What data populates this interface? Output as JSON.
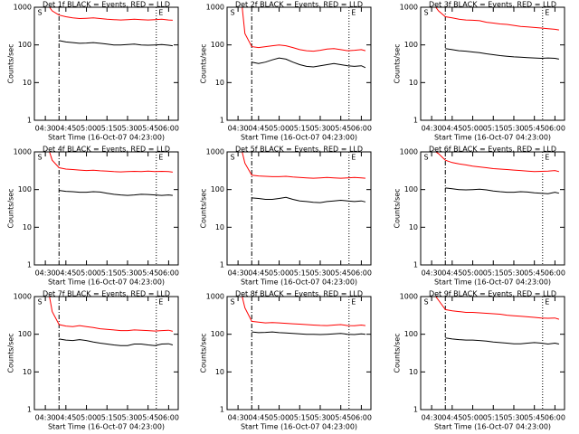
{
  "chart_data": [
    {
      "type": "line",
      "title": "Det 1f BLACK = Events, RED = LLD",
      "x_label": "Start Time (16-Oct-07 04:23:00)",
      "y_label": "Counts/sec",
      "x": [
        "04:33",
        "04:35",
        "04:40",
        "04:45",
        "04:50",
        "04:55",
        "05:00",
        "05:05",
        "05:10",
        "05:15",
        "05:20",
        "05:25",
        "05:30",
        "05:35",
        "05:40",
        "05:45",
        "05:50",
        "05:55",
        "06:00",
        "06:03"
      ],
      "xlim": [
        "04:22",
        "06:07"
      ],
      "xticks": [
        "04:30",
        "04:45",
        "05:00",
        "05:15",
        "05:30",
        "05:45",
        "06:00"
      ],
      "ylim": [
        1,
        1000
      ],
      "yticks": [
        1,
        10,
        100,
        1000
      ],
      "log_y": true,
      "markers": [
        {
          "label": "S",
          "x": "04:40"
        },
        {
          "label": "E",
          "x": "05:51"
        }
      ],
      "series": [
        {
          "color": "#ff0000",
          "values": [
            1000,
            800,
            620,
            560,
            520,
            500,
            510,
            520,
            500,
            480,
            470,
            460,
            470,
            480,
            470,
            460,
            470,
            480,
            460,
            450
          ]
        },
        {
          "color": "#000000",
          "values": [
            null,
            null,
            130,
            120,
            115,
            110,
            112,
            115,
            110,
            105,
            100,
            100,
            102,
            105,
            100,
            98,
            100,
            102,
            98,
            95
          ]
        }
      ]
    },
    {
      "type": "line",
      "title": "Det 2f BLACK = Events, RED = LLD",
      "x_label": "Start Time (16-Oct-07 04:23:00)",
      "y_label": "Counts/sec",
      "x": [
        "04:33",
        "04:35",
        "04:40",
        "04:45",
        "04:50",
        "04:55",
        "05:00",
        "05:05",
        "05:10",
        "05:15",
        "05:20",
        "05:25",
        "05:30",
        "05:35",
        "05:40",
        "05:45",
        "05:50",
        "05:55",
        "06:00",
        "06:03"
      ],
      "xlim": [
        "04:22",
        "06:07"
      ],
      "xticks": [
        "04:30",
        "04:45",
        "05:00",
        "05:15",
        "05:30",
        "05:45",
        "06:00"
      ],
      "ylim": [
        1,
        1000
      ],
      "yticks": [
        1,
        10,
        100,
        1000
      ],
      "log_y": true,
      "markers": [
        {
          "label": "S",
          "x": "04:40"
        },
        {
          "label": "E",
          "x": "05:51"
        }
      ],
      "series": [
        {
          "color": "#ff0000",
          "values": [
            1000,
            200,
            90,
            85,
            90,
            95,
            100,
            95,
            85,
            75,
            70,
            68,
            72,
            78,
            80,
            75,
            70,
            72,
            75,
            70
          ]
        },
        {
          "color": "#000000",
          "values": [
            null,
            null,
            35,
            32,
            35,
            40,
            45,
            42,
            35,
            30,
            27,
            26,
            28,
            30,
            32,
            30,
            28,
            27,
            28,
            25
          ]
        }
      ]
    },
    {
      "type": "line",
      "title": "Det 3f BLACK = Events, RED = LLD",
      "x_label": "Start Time (16-Oct-07 04:23:00)",
      "y_label": "Counts/sec",
      "x": [
        "04:33",
        "04:35",
        "04:40",
        "04:45",
        "04:50",
        "04:55",
        "05:00",
        "05:05",
        "05:10",
        "05:15",
        "05:20",
        "05:25",
        "05:30",
        "05:35",
        "05:40",
        "05:45",
        "05:50",
        "05:55",
        "06:00",
        "06:03"
      ],
      "xlim": [
        "04:22",
        "06:07"
      ],
      "xticks": [
        "04:30",
        "04:45",
        "05:00",
        "05:15",
        "05:30",
        "05:45",
        "06:00"
      ],
      "ylim": [
        1,
        1000
      ],
      "yticks": [
        1,
        10,
        100,
        1000
      ],
      "log_y": true,
      "markers": [
        {
          "label": "S",
          "x": "04:40"
        },
        {
          "label": "E",
          "x": "05:51"
        }
      ],
      "series": [
        {
          "color": "#ff0000",
          "values": [
            1000,
            800,
            560,
            520,
            480,
            460,
            450,
            440,
            400,
            380,
            360,
            350,
            330,
            310,
            300,
            290,
            280,
            270,
            260,
            250
          ]
        },
        {
          "color": "#000000",
          "values": [
            null,
            null,
            80,
            75,
            70,
            68,
            65,
            62,
            58,
            55,
            52,
            50,
            48,
            47,
            46,
            45,
            44,
            45,
            44,
            42
          ]
        }
      ]
    },
    {
      "type": "line",
      "title": "Det 4f BLACK = Events, RED = LLD",
      "x_label": "Start Time (16-Oct-07 04:23:00)",
      "y_label": "Counts/sec",
      "x": [
        "04:33",
        "04:35",
        "04:40",
        "04:45",
        "04:50",
        "04:55",
        "05:00",
        "05:05",
        "05:10",
        "05:15",
        "05:20",
        "05:25",
        "05:30",
        "05:35",
        "05:40",
        "05:45",
        "05:50",
        "05:55",
        "06:00",
        "06:03"
      ],
      "xlim": [
        "04:22",
        "06:07"
      ],
      "xticks": [
        "04:30",
        "04:45",
        "05:00",
        "05:15",
        "05:30",
        "05:45",
        "06:00"
      ],
      "ylim": [
        1,
        1000
      ],
      "yticks": [
        1,
        10,
        100,
        1000
      ],
      "log_y": true,
      "markers": [
        {
          "label": "S",
          "x": "04:40"
        },
        {
          "label": "E",
          "x": "05:51"
        }
      ],
      "series": [
        {
          "color": "#ff0000",
          "values": [
            1000,
            600,
            380,
            350,
            340,
            330,
            320,
            325,
            315,
            310,
            300,
            295,
            300,
            305,
            300,
            310,
            300,
            305,
            300,
            290
          ]
        },
        {
          "color": "#000000",
          "values": [
            null,
            null,
            95,
            90,
            88,
            85,
            85,
            88,
            86,
            80,
            75,
            72,
            70,
            72,
            75,
            74,
            72,
            70,
            72,
            70
          ]
        }
      ]
    },
    {
      "type": "line",
      "title": "Det 5f BLACK = Events, RED = LLD",
      "x_label": "Start Time (16-Oct-07 04:23:00)",
      "y_label": "Counts/sec",
      "x": [
        "04:33",
        "04:35",
        "04:40",
        "04:45",
        "04:50",
        "04:55",
        "05:00",
        "05:05",
        "05:10",
        "05:15",
        "05:20",
        "05:25",
        "05:30",
        "05:35",
        "05:40",
        "05:45",
        "05:50",
        "05:55",
        "06:00",
        "06:03"
      ],
      "xlim": [
        "04:22",
        "06:07"
      ],
      "xticks": [
        "04:30",
        "04:45",
        "05:00",
        "05:15",
        "05:30",
        "05:45",
        "06:00"
      ],
      "ylim": [
        1,
        1000
      ],
      "yticks": [
        1,
        10,
        100,
        1000
      ],
      "log_y": true,
      "markers": [
        {
          "label": "S",
          "x": "04:40"
        },
        {
          "label": "E",
          "x": "05:51"
        }
      ],
      "series": [
        {
          "color": "#ff0000",
          "values": [
            1000,
            500,
            240,
            230,
            225,
            220,
            220,
            225,
            215,
            210,
            205,
            200,
            205,
            210,
            205,
            200,
            205,
            210,
            205,
            200
          ]
        },
        {
          "color": "#000000",
          "values": [
            null,
            null,
            60,
            58,
            55,
            55,
            58,
            62,
            55,
            50,
            48,
            46,
            45,
            48,
            50,
            52,
            50,
            48,
            50,
            47
          ]
        }
      ]
    },
    {
      "type": "line",
      "title": "Det 6f BLACK = Events, RED = LLD",
      "x_label": "Start Time (16-Oct-07 04:23:00)",
      "y_label": "Counts/sec",
      "x": [
        "04:33",
        "04:35",
        "04:40",
        "04:45",
        "04:50",
        "04:55",
        "05:00",
        "05:05",
        "05:10",
        "05:15",
        "05:20",
        "05:25",
        "05:30",
        "05:35",
        "05:40",
        "05:45",
        "05:50",
        "05:55",
        "06:00",
        "06:03"
      ],
      "xlim": [
        "04:22",
        "06:07"
      ],
      "xticks": [
        "04:30",
        "04:45",
        "05:00",
        "05:15",
        "05:30",
        "05:45",
        "06:00"
      ],
      "ylim": [
        1,
        1000
      ],
      "yticks": [
        1,
        10,
        100,
        1000
      ],
      "log_y": true,
      "markers": [
        {
          "label": "S",
          "x": "04:40"
        },
        {
          "label": "E",
          "x": "05:51"
        }
      ],
      "series": [
        {
          "color": "#ff0000",
          "values": [
            1000,
            900,
            600,
            520,
            480,
            450,
            420,
            400,
            380,
            360,
            350,
            340,
            330,
            320,
            310,
            300,
            305,
            310,
            320,
            300
          ]
        },
        {
          "color": "#000000",
          "values": [
            null,
            null,
            110,
            105,
            100,
            98,
            100,
            102,
            98,
            92,
            88,
            85,
            85,
            88,
            86,
            82,
            80,
            78,
            85,
            80
          ]
        }
      ]
    },
    {
      "type": "line",
      "title": "Det 7f BLACK = Events, RED = LLD",
      "x_label": "Start Time (16-Oct-07 04:23:00)",
      "y_label": "Counts/sec",
      "x": [
        "04:33",
        "04:35",
        "04:40",
        "04:45",
        "04:50",
        "04:55",
        "05:00",
        "05:05",
        "05:10",
        "05:15",
        "05:20",
        "05:25",
        "05:30",
        "05:35",
        "05:40",
        "05:45",
        "05:50",
        "05:55",
        "06:00",
        "06:03"
      ],
      "xlim": [
        "04:22",
        "06:07"
      ],
      "xticks": [
        "04:30",
        "04:45",
        "05:00",
        "05:15",
        "05:30",
        "05:45",
        "06:00"
      ],
      "ylim": [
        1,
        1000
      ],
      "yticks": [
        1,
        10,
        100,
        1000
      ],
      "log_y": true,
      "markers": [
        {
          "label": "S",
          "x": "04:40"
        },
        {
          "label": "E",
          "x": "05:51"
        }
      ],
      "series": [
        {
          "color": "#ff0000",
          "values": [
            1000,
            400,
            180,
            165,
            160,
            170,
            160,
            150,
            140,
            135,
            130,
            125,
            125,
            130,
            128,
            125,
            122,
            125,
            128,
            120
          ]
        },
        {
          "color": "#000000",
          "values": [
            null,
            null,
            75,
            70,
            68,
            72,
            68,
            62,
            58,
            55,
            52,
            50,
            50,
            55,
            55,
            52,
            50,
            55,
            56,
            52
          ]
        }
      ]
    },
    {
      "type": "line",
      "title": "Det 8f BLACK = Events, RED = LLD",
      "x_label": "Start Time (16-Oct-07 04:23:00)",
      "y_label": "Counts/sec",
      "x": [
        "04:33",
        "04:35",
        "04:40",
        "04:45",
        "04:50",
        "04:55",
        "05:00",
        "05:05",
        "05:10",
        "05:15",
        "05:20",
        "05:25",
        "05:30",
        "05:35",
        "05:40",
        "05:45",
        "05:50",
        "05:55",
        "06:00",
        "06:03"
      ],
      "xlim": [
        "04:22",
        "06:07"
      ],
      "xticks": [
        "04:30",
        "04:45",
        "05:00",
        "05:15",
        "05:30",
        "05:45",
        "06:00"
      ],
      "ylim": [
        1,
        1000
      ],
      "yticks": [
        1,
        10,
        100,
        1000
      ],
      "log_y": true,
      "markers": [
        {
          "label": "S",
          "x": "04:40"
        },
        {
          "label": "E",
          "x": "05:51"
        }
      ],
      "series": [
        {
          "color": "#ff0000",
          "values": [
            1000,
            500,
            220,
            210,
            200,
            205,
            200,
            195,
            190,
            185,
            180,
            175,
            172,
            170,
            175,
            180,
            170,
            168,
            175,
            170
          ]
        },
        {
          "color": "#000000",
          "values": [
            null,
            null,
            115,
            110,
            112,
            115,
            110,
            108,
            105,
            102,
            100,
            100,
            98,
            100,
            102,
            105,
            100,
            98,
            102,
            100
          ]
        }
      ]
    },
    {
      "type": "line",
      "title": "Det 9f BLACK = Events, RED = LLD",
      "x_label": "Start Time (16-Oct-07 04:23:00)",
      "y_label": "Counts/sec",
      "x": [
        "04:33",
        "04:35",
        "04:40",
        "04:45",
        "04:50",
        "04:55",
        "05:00",
        "05:05",
        "05:10",
        "05:15",
        "05:20",
        "05:25",
        "05:30",
        "05:35",
        "05:40",
        "05:45",
        "05:50",
        "05:55",
        "06:00",
        "06:03"
      ],
      "xlim": [
        "04:22",
        "06:07"
      ],
      "xticks": [
        "04:30",
        "04:45",
        "05:00",
        "05:15",
        "05:30",
        "05:45",
        "06:00"
      ],
      "ylim": [
        1,
        1000
      ],
      "yticks": [
        1,
        10,
        100,
        1000
      ],
      "log_y": true,
      "markers": [
        {
          "label": "S",
          "x": "04:40"
        },
        {
          "label": "E",
          "x": "05:51"
        }
      ],
      "series": [
        {
          "color": "#ff0000",
          "values": [
            1000,
            800,
            450,
            420,
            400,
            380,
            380,
            370,
            360,
            350,
            340,
            320,
            310,
            300,
            290,
            280,
            270,
            265,
            270,
            250
          ]
        },
        {
          "color": "#000000",
          "values": [
            null,
            null,
            80,
            75,
            72,
            70,
            70,
            68,
            66,
            62,
            60,
            58,
            56,
            56,
            58,
            60,
            58,
            55,
            58,
            55
          ]
        }
      ]
    }
  ]
}
